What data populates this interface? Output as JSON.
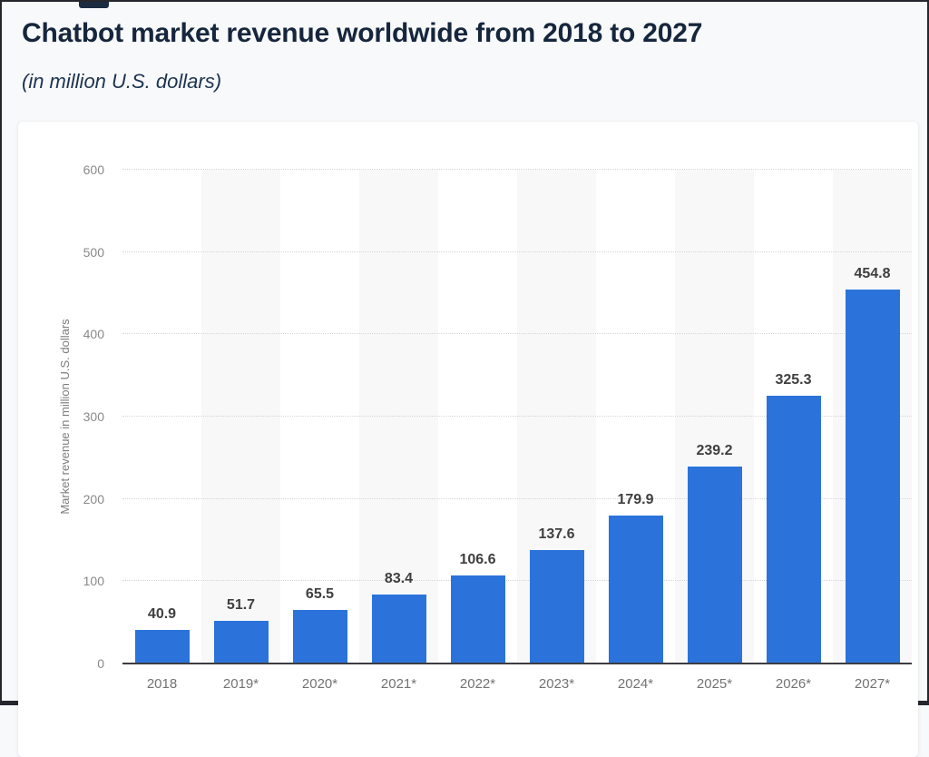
{
  "window": {
    "border_color": "#26272d",
    "page_background": "#f8f9fb",
    "card_background": "#ffffff"
  },
  "header": {
    "title": "Chatbot market revenue worldwide from 2018 to 2027",
    "subtitle": "(in million U.S. dollars)",
    "title_color": "#16263c"
  },
  "chart_data": {
    "type": "bar",
    "title": "Chatbot market revenue worldwide from 2018 to 2027",
    "subtitle": "(in million U.S. dollars)",
    "categories": [
      "2018",
      "2019*",
      "2020*",
      "2021*",
      "2022*",
      "2023*",
      "2024*",
      "2025*",
      "2026*",
      "2027*"
    ],
    "values": [
      40.9,
      51.7,
      65.5,
      83.4,
      106.6,
      137.6,
      179.9,
      239.2,
      325.3,
      454.8
    ],
    "xlabel": "",
    "ylabel": "Market revenue in million U.S. dollars",
    "ylim": [
      0,
      600
    ],
    "yticks": [
      0,
      100,
      200,
      300,
      400,
      500,
      600
    ],
    "grid": "horizontal-dotted",
    "legend": "none",
    "value_labels": true,
    "bar_color": "#2b73db",
    "plot_band_color": "#f8f8f9",
    "band_pattern": "alternating vertical bands, shaded on 2019*, 2021*, 2023*, 2025*, 2027* columns"
  }
}
